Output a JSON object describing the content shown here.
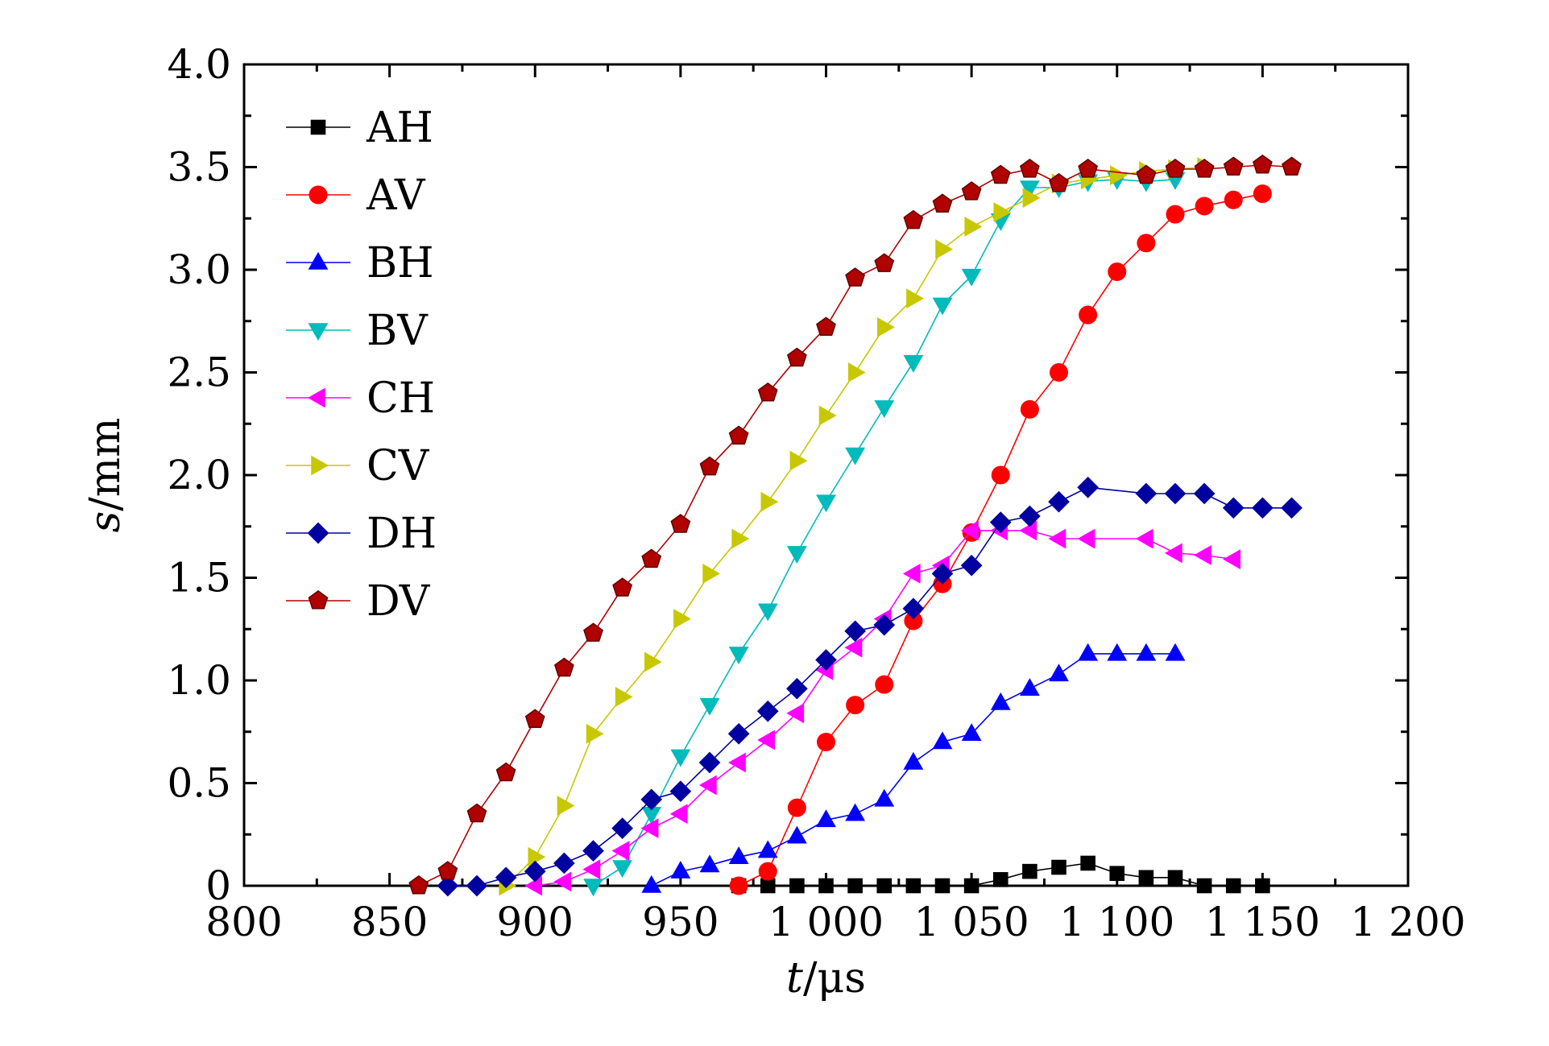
{
  "chart_data": {
    "type": "line",
    "title": "",
    "xlabel": {
      "var": "t",
      "unit": "/μs"
    },
    "ylabel": {
      "var": "s",
      "unit": "/mm"
    },
    "xlim": [
      800,
      1200
    ],
    "ylim": [
      0,
      4.0
    ],
    "x_ticks": [
      800,
      850,
      900,
      950,
      1000,
      1050,
      1100,
      1150,
      1200
    ],
    "x_tick_labels": [
      "800",
      "850",
      "900",
      "950",
      "1 000",
      "1 050",
      "1 100",
      "1 150",
      "1 200"
    ],
    "y_ticks": [
      0,
      0.5,
      1.0,
      1.5,
      2.0,
      2.5,
      3.0,
      3.5,
      4.0
    ],
    "y_tick_labels": [
      "0",
      "0.5",
      "1.0",
      "1.5",
      "2.0",
      "2.5",
      "3.0",
      "3.5",
      "4.0"
    ],
    "grid": false,
    "legend_position": "top-left",
    "series": [
      {
        "name": "AH",
        "color": "#000000",
        "marker": "square",
        "points": [
          [
            970,
            0
          ],
          [
            980,
            0
          ],
          [
            990,
            0
          ],
          [
            1000,
            0
          ],
          [
            1010,
            0
          ],
          [
            1020,
            0
          ],
          [
            1030,
            0
          ],
          [
            1040,
            0
          ],
          [
            1050,
            0
          ],
          [
            1060,
            0.03
          ],
          [
            1070,
            0.07
          ],
          [
            1080,
            0.09
          ],
          [
            1090,
            0.11
          ],
          [
            1100,
            0.06
          ],
          [
            1110,
            0.04
          ],
          [
            1120,
            0.04
          ],
          [
            1130,
            0
          ],
          [
            1140,
            0
          ],
          [
            1150,
            0
          ]
        ]
      },
      {
        "name": "AV",
        "color": "#ff0000",
        "marker": "circle",
        "points": [
          [
            970,
            0
          ],
          [
            980,
            0.07
          ],
          [
            990,
            0.38
          ],
          [
            1000,
            0.7
          ],
          [
            1010,
            0.88
          ],
          [
            1020,
            0.98
          ],
          [
            1030,
            1.29
          ],
          [
            1040,
            1.47
          ],
          [
            1050,
            1.72
          ],
          [
            1060,
            2.0
          ],
          [
            1070,
            2.32
          ],
          [
            1080,
            2.5
          ],
          [
            1090,
            2.78
          ],
          [
            1100,
            2.99
          ],
          [
            1110,
            3.13
          ],
          [
            1120,
            3.27
          ],
          [
            1130,
            3.31
          ],
          [
            1140,
            3.34
          ],
          [
            1150,
            3.37
          ]
        ]
      },
      {
        "name": "BH",
        "color": "#0000ff",
        "marker": "triangle-up",
        "points": [
          [
            940,
            0
          ],
          [
            950,
            0.07
          ],
          [
            960,
            0.1
          ],
          [
            970,
            0.14
          ],
          [
            980,
            0.17
          ],
          [
            990,
            0.24
          ],
          [
            1000,
            0.32
          ],
          [
            1010,
            0.35
          ],
          [
            1020,
            0.42
          ],
          [
            1030,
            0.6
          ],
          [
            1040,
            0.7
          ],
          [
            1050,
            0.74
          ],
          [
            1060,
            0.89
          ],
          [
            1070,
            0.96
          ],
          [
            1080,
            1.03
          ],
          [
            1090,
            1.13
          ],
          [
            1100,
            1.13
          ],
          [
            1110,
            1.13
          ],
          [
            1120,
            1.13
          ]
        ]
      },
      {
        "name": "BV",
        "color": "#00bbbb",
        "marker": "triangle-down",
        "points": [
          [
            920,
            0
          ],
          [
            930,
            0.09
          ],
          [
            940,
            0.35
          ],
          [
            950,
            0.63
          ],
          [
            960,
            0.88
          ],
          [
            970,
            1.13
          ],
          [
            980,
            1.34
          ],
          [
            990,
            1.62
          ],
          [
            1000,
            1.87
          ],
          [
            1010,
            2.1
          ],
          [
            1020,
            2.33
          ],
          [
            1030,
            2.55
          ],
          [
            1040,
            2.83
          ],
          [
            1050,
            2.97
          ],
          [
            1060,
            3.24
          ],
          [
            1070,
            3.4
          ],
          [
            1080,
            3.4
          ],
          [
            1090,
            3.43
          ],
          [
            1100,
            3.44
          ],
          [
            1110,
            3.43
          ],
          [
            1120,
            3.44
          ]
        ]
      },
      {
        "name": "CH",
        "color": "#ff00ff",
        "marker": "triangle-left",
        "points": [
          [
            900,
            0
          ],
          [
            910,
            0.02
          ],
          [
            920,
            0.08
          ],
          [
            930,
            0.17
          ],
          [
            940,
            0.28
          ],
          [
            950,
            0.35
          ],
          [
            960,
            0.49
          ],
          [
            970,
            0.6
          ],
          [
            980,
            0.71
          ],
          [
            990,
            0.84
          ],
          [
            1000,
            1.05
          ],
          [
            1010,
            1.16
          ],
          [
            1020,
            1.3
          ],
          [
            1030,
            1.52
          ],
          [
            1040,
            1.56
          ],
          [
            1050,
            1.73
          ],
          [
            1060,
            1.73
          ],
          [
            1070,
            1.73
          ],
          [
            1080,
            1.69
          ],
          [
            1090,
            1.69
          ],
          [
            1110,
            1.69
          ],
          [
            1120,
            1.62
          ],
          [
            1130,
            1.61
          ],
          [
            1140,
            1.59
          ]
        ]
      },
      {
        "name": "CV",
        "color": "#c8c800",
        "marker": "triangle-right",
        "points": [
          [
            890,
            0
          ],
          [
            900,
            0.14
          ],
          [
            910,
            0.39
          ],
          [
            920,
            0.74
          ],
          [
            930,
            0.92
          ],
          [
            940,
            1.09
          ],
          [
            950,
            1.3
          ],
          [
            960,
            1.52
          ],
          [
            970,
            1.69
          ],
          [
            980,
            1.87
          ],
          [
            990,
            2.07
          ],
          [
            1000,
            2.29
          ],
          [
            1010,
            2.5
          ],
          [
            1020,
            2.72
          ],
          [
            1030,
            2.86
          ],
          [
            1040,
            3.1
          ],
          [
            1050,
            3.21
          ],
          [
            1060,
            3.28
          ],
          [
            1070,
            3.35
          ],
          [
            1080,
            3.42
          ],
          [
            1090,
            3.44
          ],
          [
            1100,
            3.46
          ],
          [
            1110,
            3.48
          ],
          [
            1120,
            3.49
          ],
          [
            1130,
            3.5
          ]
        ]
      },
      {
        "name": "DH",
        "color": "#0000a0",
        "marker": "diamond",
        "points": [
          [
            870,
            0
          ],
          [
            880,
            0
          ],
          [
            890,
            0.04
          ],
          [
            900,
            0.07
          ],
          [
            910,
            0.11
          ],
          [
            920,
            0.17
          ],
          [
            930,
            0.28
          ],
          [
            940,
            0.42
          ],
          [
            950,
            0.46
          ],
          [
            960,
            0.6
          ],
          [
            970,
            0.74
          ],
          [
            980,
            0.85
          ],
          [
            990,
            0.96
          ],
          [
            1000,
            1.1
          ],
          [
            1010,
            1.24
          ],
          [
            1020,
            1.27
          ],
          [
            1030,
            1.35
          ],
          [
            1040,
            1.52
          ],
          [
            1050,
            1.56
          ],
          [
            1060,
            1.77
          ],
          [
            1070,
            1.8
          ],
          [
            1080,
            1.87
          ],
          [
            1090,
            1.94
          ],
          [
            1110,
            1.91
          ],
          [
            1120,
            1.91
          ],
          [
            1130,
            1.91
          ],
          [
            1140,
            1.84
          ],
          [
            1150,
            1.84
          ],
          [
            1160,
            1.84
          ]
        ]
      },
      {
        "name": "DV",
        "color": "#b00000",
        "marker": "pentagon",
        "points": [
          [
            860,
            0
          ],
          [
            870,
            0.07
          ],
          [
            880,
            0.35
          ],
          [
            890,
            0.55
          ],
          [
            900,
            0.81
          ],
          [
            910,
            1.06
          ],
          [
            920,
            1.23
          ],
          [
            930,
            1.45
          ],
          [
            940,
            1.59
          ],
          [
            950,
            1.76
          ],
          [
            960,
            2.04
          ],
          [
            970,
            2.19
          ],
          [
            980,
            2.4
          ],
          [
            990,
            2.57
          ],
          [
            1000,
            2.72
          ],
          [
            1010,
            2.96
          ],
          [
            1020,
            3.03
          ],
          [
            1030,
            3.24
          ],
          [
            1040,
            3.32
          ],
          [
            1050,
            3.38
          ],
          [
            1060,
            3.46
          ],
          [
            1070,
            3.49
          ],
          [
            1080,
            3.42
          ],
          [
            1090,
            3.49
          ],
          [
            1110,
            3.46
          ],
          [
            1120,
            3.49
          ],
          [
            1130,
            3.49
          ],
          [
            1140,
            3.5
          ],
          [
            1150,
            3.51
          ],
          [
            1160,
            3.5
          ]
        ]
      }
    ]
  }
}
